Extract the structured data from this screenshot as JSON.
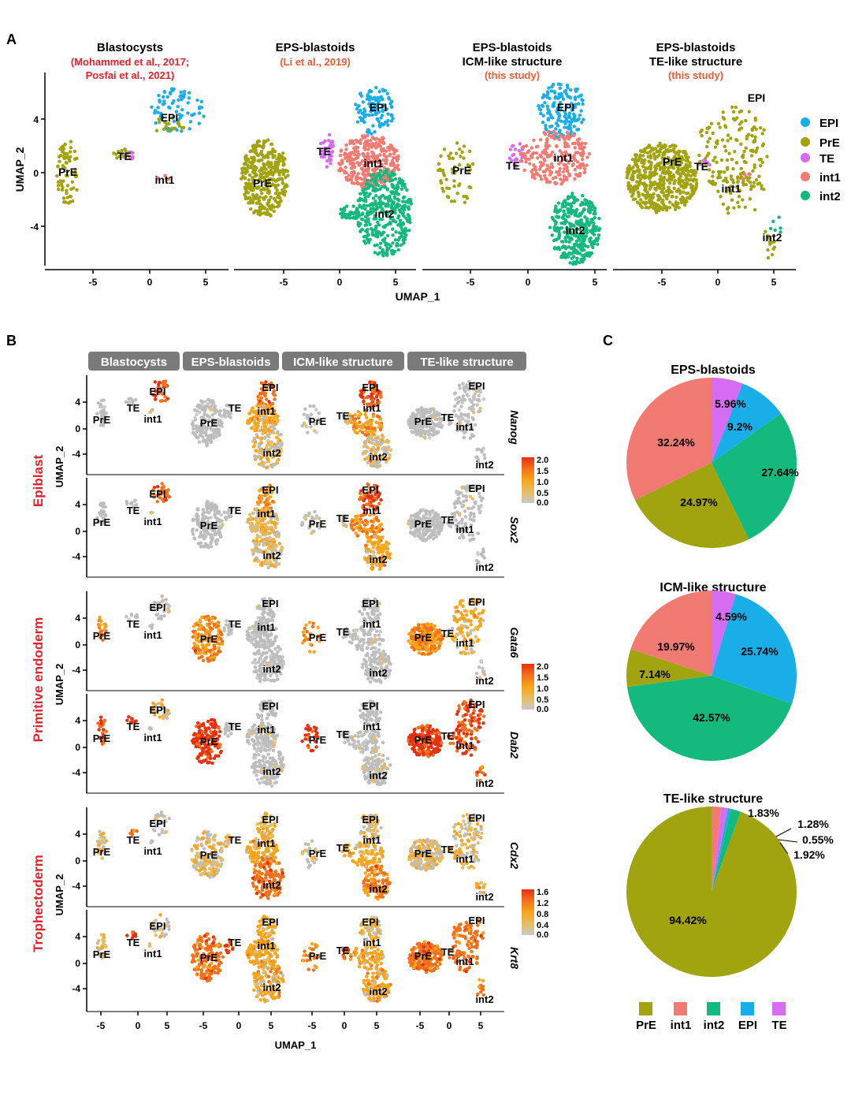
{
  "colors": {
    "EPI": "#1aaee8",
    "PrE": "#a1a30f",
    "TE": "#d66cf1",
    "int1": "#f17a72",
    "int2": "#14b97e",
    "red": "#e8202c",
    "orange_text": "#ef5a33",
    "header_bg": "#7a7a7a",
    "grey": "#bdbdbd",
    "expr": [
      "#c9c9c9",
      "#e7bd63",
      "#f7a51c",
      "#f2711b",
      "#e53011"
    ]
  },
  "panel_labels": {
    "a": "A",
    "b": "B",
    "c": "C"
  },
  "clusters": [
    "EPI",
    "PrE",
    "TE",
    "int1",
    "int2"
  ],
  "panelA": {
    "ylabel": "UMAP_2",
    "xlabel": "UMAP_1",
    "yticks": [
      "4",
      "0",
      "-4"
    ],
    "xticks": [
      "-5",
      "0",
      "5"
    ],
    "legend": [
      "EPI",
      "PrE",
      "TE",
      "int1",
      "int2"
    ],
    "facets": [
      {
        "title": [
          "Blastocysts"
        ],
        "ref": [
          "(Mohammed et al., 2017;",
          "Posfai et al., 2021)"
        ]
      },
      {
        "title": [
          "EPS-blastoids"
        ],
        "ref": [
          "(Li et al., 2019)"
        ]
      },
      {
        "title": [
          "EPS-blastoids",
          "ICM-like structure"
        ],
        "ref": [
          "(this study)"
        ]
      },
      {
        "title": [
          "EPS-blastoids",
          "TE-like structure"
        ],
        "ref": [
          "(this study)"
        ]
      }
    ]
  },
  "panelB": {
    "headers": [
      "Blastocysts",
      "EPS-blastoids",
      "ICM-like structure",
      "TE-like structure"
    ],
    "ylabel": "UMAP_2",
    "xlabel": "UMAP_1",
    "yticks": [
      "4",
      "0",
      "-4"
    ],
    "xticks": [
      "-5",
      "0",
      "5"
    ],
    "groups": [
      {
        "name": "Epiblast",
        "genes": [
          "Nanog",
          "Sox2"
        ],
        "scale": [
          "2.0",
          "1.5",
          "1.0",
          "0.5",
          "0.0"
        ]
      },
      {
        "name": "Primitive endoderm",
        "genes": [
          "Gata6",
          "Dab2"
        ],
        "scale": [
          "2.0",
          "1.5",
          "1.0",
          "0.5",
          "0.0"
        ]
      },
      {
        "name": "Trophectoderm",
        "genes": [
          "Cdx2",
          "Krt8"
        ],
        "scale": [
          "1.6",
          "1.2",
          "0.8",
          "0.4",
          "0.0"
        ]
      }
    ],
    "cluster_labels": [
      "PrE",
      "TE",
      "int1",
      "EPI",
      "int2"
    ]
  },
  "chart_data": [
    {
      "type": "pie",
      "title": "EPS-blastoids",
      "slices": [
        {
          "label": "TE",
          "value": 5.96,
          "text": "5.96%"
        },
        {
          "label": "EPI",
          "value": 9.2,
          "text": "9.2%"
        },
        {
          "label": "int2",
          "value": 27.64,
          "text": "27.64%"
        },
        {
          "label": "PrE",
          "value": 24.97,
          "text": "24.97%"
        },
        {
          "label": "int1",
          "value": 32.24,
          "text": "32.24%"
        }
      ]
    },
    {
      "type": "pie",
      "title": "ICM-like structure",
      "slices": [
        {
          "label": "TE",
          "value": 4.59,
          "text": "4.59%"
        },
        {
          "label": "EPI",
          "value": 25.74,
          "text": "25.74%"
        },
        {
          "label": "int2",
          "value": 42.57,
          "text": "42.57%"
        },
        {
          "label": "PrE",
          "value": 7.14,
          "text": "7.14%"
        },
        {
          "label": "int1",
          "value": 19.97,
          "text": "19.97%"
        }
      ]
    },
    {
      "type": "pie",
      "title": "TE-like structure",
      "slices": [
        {
          "label": "int1",
          "value": 1.83,
          "text": "1.83%"
        },
        {
          "label": "TE",
          "value": 1.28,
          "text": "1.28%"
        },
        {
          "label": "EPI",
          "value": 0.55,
          "text": "0.55%"
        },
        {
          "label": "int2",
          "value": 1.92,
          "text": "1.92%"
        },
        {
          "label": "PrE",
          "value": 94.42,
          "text": "94.42%"
        }
      ]
    }
  ],
  "pie_legend": [
    "PrE",
    "int1",
    "int2",
    "EPI",
    "TE"
  ]
}
